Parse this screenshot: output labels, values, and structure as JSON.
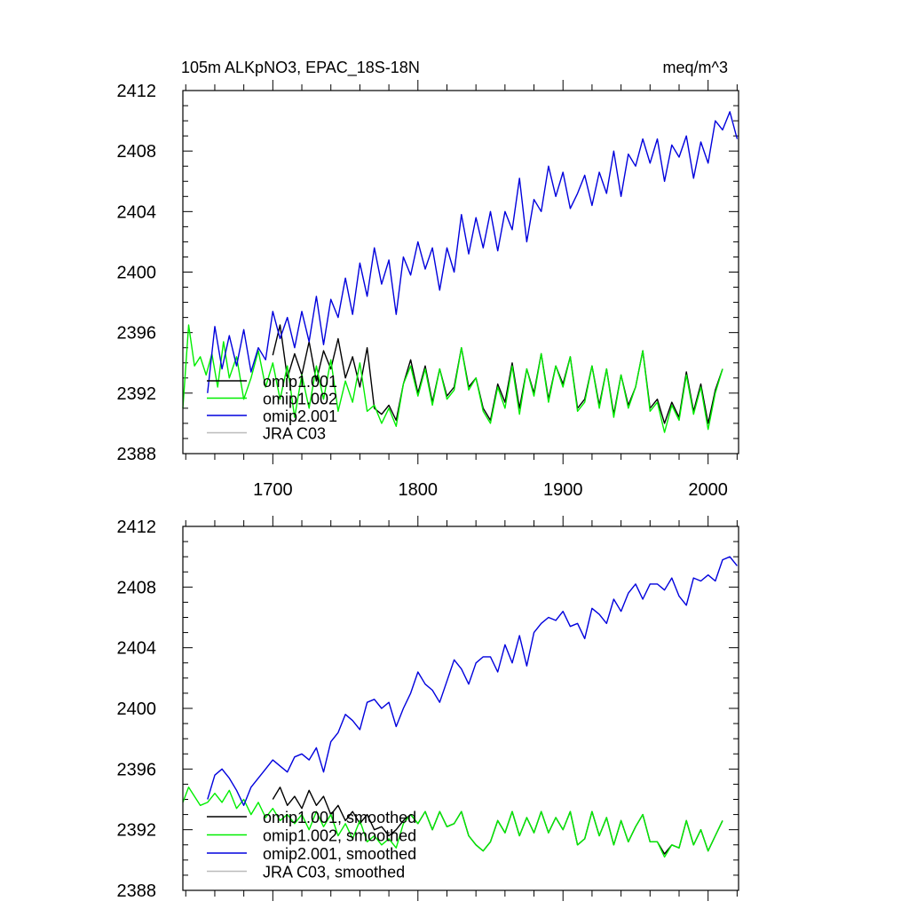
{
  "chart_data": [
    {
      "type": "line",
      "title": "105m ALKpNO3, EPAC_18S-18N",
      "units": "meq/m^3",
      "xlim": [
        1638,
        2021
      ],
      "ylim": [
        2388,
        2412
      ],
      "yticks": [
        2388,
        2392,
        2396,
        2400,
        2404,
        2408,
        2412
      ],
      "xticks": [
        1700,
        1800,
        1900,
        2000
      ],
      "x_tick_labels_shown": true,
      "legend_position": "bottom-left",
      "series": [
        {
          "name": "omip1.001",
          "color": "#000000",
          "x": [
            1700,
            1705,
            1710,
            1715,
            1720,
            1725,
            1730,
            1735,
            1740,
            1745,
            1750,
            1755,
            1760,
            1765,
            1770,
            1775,
            1780,
            1785,
            1790,
            1795,
            1800,
            1805,
            1810,
            1815,
            1820,
            1825,
            1830,
            1835,
            1840,
            1845,
            1850,
            1855,
            1860,
            1865,
            1870,
            1875,
            1880,
            1885,
            1890,
            1895,
            1900,
            1905,
            1910,
            1915,
            1920,
            1925,
            1930,
            1935,
            1940,
            1945,
            1950,
            1955,
            1960,
            1965,
            1970,
            1975,
            1980,
            1985,
            1990,
            1995,
            2000,
            2005,
            2010
          ],
          "values": [
            2394.5,
            2396.5,
            2393.0,
            2394.6,
            2393.2,
            2395.4,
            2392.8,
            2394.8,
            2393.6,
            2395.6,
            2393.0,
            2394.4,
            2392.4,
            2395.0,
            2391.0,
            2390.6,
            2391.2,
            2390.2,
            2392.6,
            2394.2,
            2392.0,
            2393.8,
            2391.4,
            2393.6,
            2391.8,
            2392.4,
            2395.0,
            2392.4,
            2393.0,
            2391.0,
            2390.2,
            2392.6,
            2391.4,
            2394.0,
            2391.0,
            2393.6,
            2392.0,
            2394.6,
            2391.6,
            2393.8,
            2392.6,
            2394.4,
            2391.0,
            2391.6,
            2393.8,
            2391.2,
            2393.6,
            2390.6,
            2393.2,
            2391.2,
            2392.4,
            2394.8,
            2391.0,
            2391.6,
            2390.0,
            2391.4,
            2390.4,
            2393.4,
            2390.8,
            2392.6,
            2390.0,
            2392.2,
            2393.6
          ]
        },
        {
          "name": "omip1.002",
          "color": "#00ee00",
          "x": [
            1638,
            1642,
            1646,
            1650,
            1654,
            1658,
            1662,
            1666,
            1670,
            1675,
            1680,
            1685,
            1690,
            1695,
            1700,
            1705,
            1710,
            1715,
            1720,
            1725,
            1730,
            1735,
            1740,
            1745,
            1750,
            1755,
            1760,
            1765,
            1770,
            1775,
            1780,
            1785,
            1790,
            1795,
            1800,
            1805,
            1810,
            1815,
            1820,
            1825,
            1830,
            1835,
            1840,
            1845,
            1850,
            1855,
            1860,
            1865,
            1870,
            1875,
            1880,
            1885,
            1890,
            1895,
            1900,
            1905,
            1910,
            1915,
            1920,
            1925,
            1930,
            1935,
            1940,
            1945,
            1950,
            1955,
            1960,
            1965,
            1970,
            1975,
            1980,
            1985,
            1990,
            1995,
            2000,
            2005,
            2010
          ],
          "values": [
            2391.0,
            2396.5,
            2393.8,
            2394.4,
            2393.2,
            2394.6,
            2392.4,
            2395.4,
            2393.0,
            2394.4,
            2391.6,
            2393.0,
            2394.8,
            2392.4,
            2394.0,
            2391.6,
            2393.8,
            2390.4,
            2393.2,
            2391.0,
            2393.8,
            2391.6,
            2394.2,
            2390.8,
            2392.8,
            2391.4,
            2394.0,
            2390.8,
            2391.2,
            2390.0,
            2391.0,
            2389.8,
            2392.6,
            2393.8,
            2391.8,
            2393.6,
            2391.2,
            2393.6,
            2391.6,
            2392.2,
            2395.0,
            2392.2,
            2393.0,
            2390.8,
            2390.0,
            2392.4,
            2391.0,
            2393.8,
            2390.6,
            2393.6,
            2391.8,
            2394.6,
            2391.4,
            2393.8,
            2392.4,
            2394.4,
            2390.8,
            2391.4,
            2393.8,
            2391.0,
            2393.6,
            2390.4,
            2393.2,
            2391.0,
            2392.4,
            2394.8,
            2390.8,
            2391.4,
            2389.4,
            2391.2,
            2390.2,
            2393.2,
            2390.6,
            2392.4,
            2389.6,
            2392.0,
            2393.6
          ]
        },
        {
          "name": "omip2.001",
          "color": "#0000dd",
          "x": [
            1655,
            1660,
            1665,
            1670,
            1675,
            1680,
            1685,
            1690,
            1695,
            1700,
            1705,
            1710,
            1715,
            1720,
            1725,
            1730,
            1735,
            1740,
            1745,
            1750,
            1755,
            1760,
            1765,
            1770,
            1775,
            1780,
            1785,
            1790,
            1795,
            1800,
            1805,
            1810,
            1815,
            1820,
            1825,
            1830,
            1835,
            1840,
            1845,
            1850,
            1855,
            1860,
            1865,
            1870,
            1875,
            1880,
            1885,
            1890,
            1895,
            1900,
            1905,
            1910,
            1915,
            1920,
            1925,
            1930,
            1935,
            1940,
            1945,
            1950,
            1955,
            1960,
            1965,
            1970,
            1975,
            1980,
            1985,
            1990,
            1995,
            2000,
            2005,
            2010,
            2015,
            2020
          ],
          "values": [
            2392.0,
            2396.4,
            2393.6,
            2395.8,
            2393.8,
            2396.2,
            2393.4,
            2395.0,
            2394.2,
            2397.4,
            2395.6,
            2397.0,
            2395.0,
            2397.4,
            2395.4,
            2398.4,
            2395.2,
            2398.2,
            2397.0,
            2399.6,
            2397.2,
            2400.6,
            2398.4,
            2401.6,
            2399.2,
            2400.8,
            2397.2,
            2401.0,
            2399.8,
            2402.0,
            2400.2,
            2401.6,
            2398.8,
            2401.6,
            2400.0,
            2403.8,
            2401.2,
            2403.6,
            2401.6,
            2404.0,
            2401.4,
            2404.0,
            2402.8,
            2406.2,
            2402.0,
            2404.8,
            2404.0,
            2407.0,
            2405.0,
            2406.6,
            2404.2,
            2405.2,
            2406.4,
            2404.4,
            2406.6,
            2405.2,
            2408.0,
            2405.0,
            2407.8,
            2407.0,
            2408.8,
            2407.2,
            2408.8,
            2406.0,
            2408.4,
            2407.6,
            2409.0,
            2406.2,
            2408.6,
            2407.2,
            2410.0,
            2409.4,
            2410.6,
            2408.8
          ]
        },
        {
          "name": "JRA C03",
          "color": "#bbbbbb",
          "x": [],
          "values": []
        }
      ]
    },
    {
      "type": "line",
      "title": "",
      "units": "",
      "xlim": [
        1638,
        2021
      ],
      "ylim": [
        2388,
        2412
      ],
      "yticks": [
        2388,
        2392,
        2396,
        2400,
        2404,
        2408,
        2412
      ],
      "xticks": [
        1700,
        1800,
        1900,
        2000
      ],
      "x_tick_labels_shown": false,
      "legend_position": "bottom-left",
      "series": [
        {
          "name": "omip1.001, smoothed",
          "color": "#000000",
          "x": [
            1700,
            1705,
            1710,
            1715,
            1720,
            1725,
            1730,
            1735,
            1740,
            1745,
            1750,
            1755,
            1760,
            1765,
            1770,
            1775,
            1780,
            1785,
            1790,
            1795,
            1800,
            1805,
            1810,
            1815,
            1820,
            1825,
            1830,
            1835,
            1840,
            1845,
            1850,
            1855,
            1860,
            1865,
            1870,
            1875,
            1880,
            1885,
            1890,
            1895,
            1900,
            1905,
            1910,
            1915,
            1920,
            1925,
            1930,
            1935,
            1940,
            1945,
            1950,
            1955,
            1960,
            1965,
            1970,
            1975,
            1980,
            1985,
            1990,
            1995,
            2000,
            2005,
            2010
          ],
          "values": [
            2394.0,
            2394.8,
            2393.6,
            2394.2,
            2393.4,
            2394.6,
            2393.6,
            2394.2,
            2393.0,
            2393.6,
            2392.6,
            2393.2,
            2392.4,
            2393.0,
            2392.0,
            2392.2,
            2391.6,
            2392.0,
            2392.6,
            2393.0,
            2392.4,
            2393.2,
            2392.0,
            2393.2,
            2392.2,
            2392.4,
            2393.2,
            2391.6,
            2391.0,
            2390.6,
            2391.2,
            2392.6,
            2391.8,
            2393.2,
            2391.6,
            2392.8,
            2391.8,
            2393.2,
            2391.8,
            2392.8,
            2392.0,
            2393.2,
            2391.0,
            2391.4,
            2393.2,
            2391.6,
            2392.8,
            2391.0,
            2392.6,
            2391.2,
            2392.2,
            2393.0,
            2391.2,
            2391.2,
            2390.4,
            2391.0,
            2390.8,
            2392.6,
            2391.0,
            2392.0,
            2390.6,
            2391.6,
            2392.6
          ]
        },
        {
          "name": "omip1.002, smoothed",
          "color": "#00ee00",
          "x": [
            1638,
            1642,
            1646,
            1650,
            1655,
            1660,
            1665,
            1670,
            1675,
            1680,
            1685,
            1690,
            1695,
            1700,
            1705,
            1710,
            1715,
            1720,
            1725,
            1730,
            1735,
            1740,
            1745,
            1750,
            1755,
            1760,
            1765,
            1770,
            1775,
            1780,
            1785,
            1790,
            1795,
            1800,
            1805,
            1810,
            1815,
            1820,
            1825,
            1830,
            1835,
            1840,
            1845,
            1850,
            1855,
            1860,
            1865,
            1870,
            1875,
            1880,
            1885,
            1890,
            1895,
            1900,
            1905,
            1910,
            1915,
            1920,
            1925,
            1930,
            1935,
            1940,
            1945,
            1950,
            1955,
            1960,
            1965,
            1970,
            1975,
            1980,
            1985,
            1990,
            1995,
            2000,
            2005,
            2010
          ],
          "values": [
            2393.8,
            2394.8,
            2394.2,
            2393.6,
            2393.8,
            2394.4,
            2393.8,
            2394.6,
            2393.4,
            2394.0,
            2393.0,
            2393.8,
            2392.8,
            2393.4,
            2392.6,
            2393.0,
            2392.4,
            2393.0,
            2392.0,
            2393.2,
            2392.2,
            2393.0,
            2391.6,
            2392.4,
            2391.4,
            2392.6,
            2391.2,
            2391.6,
            2391.0,
            2391.4,
            2390.8,
            2392.4,
            2393.0,
            2392.4,
            2393.2,
            2392.0,
            2393.2,
            2392.2,
            2392.4,
            2393.2,
            2391.6,
            2391.0,
            2390.6,
            2391.2,
            2392.6,
            2391.8,
            2393.2,
            2391.6,
            2392.8,
            2391.8,
            2393.2,
            2391.8,
            2392.8,
            2392.0,
            2393.2,
            2391.0,
            2391.4,
            2393.2,
            2391.6,
            2392.8,
            2391.0,
            2392.6,
            2391.2,
            2392.2,
            2393.0,
            2391.2,
            2391.2,
            2390.2,
            2391.0,
            2390.8,
            2392.6,
            2391.0,
            2392.0,
            2390.6,
            2391.6,
            2392.6
          ]
        },
        {
          "name": "omip2.001, smoothed",
          "color": "#0000dd",
          "x": [
            1655,
            1660,
            1665,
            1670,
            1675,
            1680,
            1685,
            1690,
            1695,
            1700,
            1705,
            1710,
            1715,
            1720,
            1725,
            1730,
            1735,
            1740,
            1745,
            1750,
            1755,
            1760,
            1765,
            1770,
            1775,
            1780,
            1785,
            1790,
            1795,
            1800,
            1805,
            1810,
            1815,
            1820,
            1825,
            1830,
            1835,
            1840,
            1845,
            1850,
            1855,
            1860,
            1865,
            1870,
            1875,
            1880,
            1885,
            1890,
            1895,
            1900,
            1905,
            1910,
            1915,
            1920,
            1925,
            1930,
            1935,
            1940,
            1945,
            1950,
            1955,
            1960,
            1965,
            1970,
            1975,
            1980,
            1985,
            1990,
            1995,
            2000,
            2005,
            2010,
            2015,
            2020
          ],
          "values": [
            2394.0,
            2395.6,
            2396.0,
            2395.4,
            2394.6,
            2393.6,
            2394.8,
            2395.4,
            2396.0,
            2396.6,
            2396.2,
            2395.8,
            2396.8,
            2397.0,
            2396.6,
            2397.4,
            2395.8,
            2397.8,
            2398.4,
            2399.6,
            2399.2,
            2398.6,
            2400.4,
            2400.6,
            2400.0,
            2400.4,
            2398.8,
            2400.0,
            2401.0,
            2402.4,
            2401.6,
            2401.2,
            2400.4,
            2401.8,
            2403.2,
            2402.6,
            2401.6,
            2403.0,
            2403.4,
            2403.4,
            2402.4,
            2404.2,
            2403.0,
            2404.8,
            2402.8,
            2405.0,
            2405.6,
            2406.0,
            2405.8,
            2406.4,
            2405.4,
            2405.6,
            2404.6,
            2406.6,
            2406.2,
            2405.6,
            2407.2,
            2406.4,
            2407.6,
            2408.2,
            2407.2,
            2408.2,
            2408.2,
            2407.8,
            2408.6,
            2407.4,
            2406.8,
            2408.6,
            2408.4,
            2408.8,
            2408.4,
            2409.8,
            2410.0,
            2409.4
          ]
        },
        {
          "name": "JRA C03, smoothed",
          "color": "#bbbbbb",
          "x": [],
          "values": []
        }
      ]
    }
  ]
}
